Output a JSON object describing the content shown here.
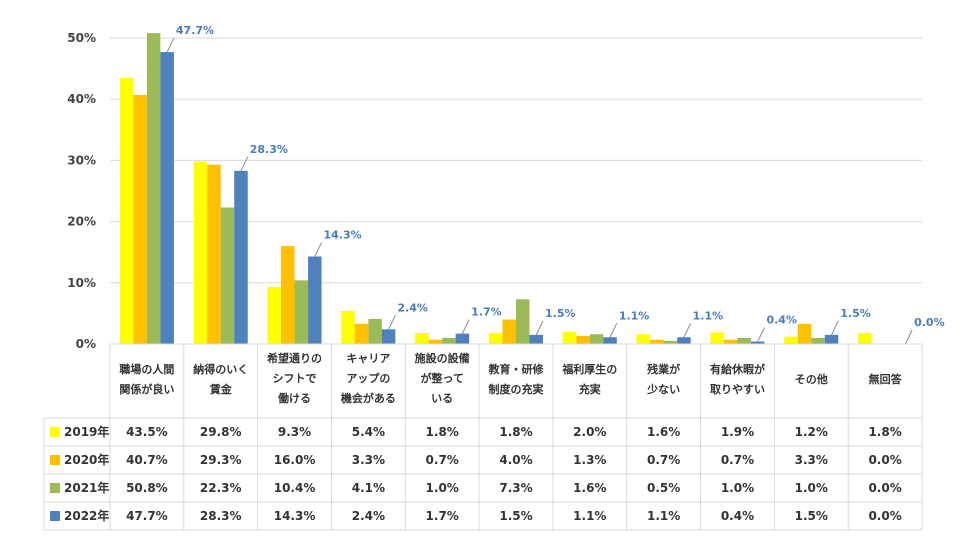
{
  "chart_data": {
    "type": "bar",
    "yticks": [
      "0%",
      "10%",
      "20%",
      "30%",
      "40%",
      "50%"
    ],
    "ylim": [
      0,
      50
    ],
    "categories": [
      [
        "職場の人間",
        "関係が良い"
      ],
      [
        "納得のいく",
        "賃金"
      ],
      [
        "希望通りの",
        "シフトで",
        "働ける"
      ],
      [
        "キャリア",
        "アップの",
        "機会がある"
      ],
      [
        "施設の設備",
        "が整って",
        "いる"
      ],
      [
        "教育・研修",
        "制度の充実"
      ],
      [
        "福利厚生の",
        "充実"
      ],
      [
        "残業が",
        "少ない"
      ],
      [
        "有給休暇が",
        "取りやすい"
      ],
      [
        "その他"
      ],
      [
        "無回答"
      ]
    ],
    "series": [
      {
        "name": "2019年",
        "color": "#ffff00",
        "values": [
          43.5,
          29.8,
          9.3,
          5.4,
          1.8,
          1.8,
          2.0,
          1.6,
          1.9,
          1.2,
          1.8
        ],
        "labels": [
          "43.5%",
          "29.8%",
          "9.3%",
          "5.4%",
          "1.8%",
          "1.8%",
          "2.0%",
          "1.6%",
          "1.9%",
          "1.2%",
          "1.8%"
        ]
      },
      {
        "name": "2020年",
        "color": "#ffc000",
        "values": [
          40.7,
          29.3,
          16.0,
          3.3,
          0.7,
          4.0,
          1.3,
          0.7,
          0.7,
          3.3,
          0.0
        ],
        "labels": [
          "40.7%",
          "29.3%",
          "16.0%",
          "3.3%",
          "0.7%",
          "4.0%",
          "1.3%",
          "0.7%",
          "0.7%",
          "3.3%",
          "0.0%"
        ]
      },
      {
        "name": "2021年",
        "color": "#9bbb59",
        "values": [
          50.8,
          22.3,
          10.4,
          4.1,
          1.0,
          7.3,
          1.6,
          0.5,
          1.0,
          1.0,
          0.0
        ],
        "labels": [
          "50.8%",
          "22.3%",
          "10.4%",
          "4.1%",
          "1.0%",
          "7.3%",
          "1.6%",
          "0.5%",
          "1.0%",
          "1.0%",
          "0.0%"
        ]
      },
      {
        "name": "2022年",
        "color": "#4f81bd",
        "values": [
          47.7,
          28.3,
          14.3,
          2.4,
          1.7,
          1.5,
          1.1,
          1.1,
          0.4,
          1.5,
          0.0
        ],
        "labels": [
          "47.7%",
          "28.3%",
          "14.3%",
          "2.4%",
          "1.7%",
          "1.5%",
          "1.1%",
          "1.1%",
          "0.4%",
          "1.5%",
          "0.0%"
        ]
      }
    ],
    "data_labels_series": "2022年",
    "data_labels": [
      "47.7%",
      "28.3%",
      "14.3%",
      "2.4%",
      "1.7%",
      "1.5%",
      "1.1%",
      "1.1%",
      "0.4%",
      "1.5%",
      "0.0%"
    ],
    "grid": true,
    "legend": "data-table-left",
    "label_color": "#4a7bbf"
  }
}
